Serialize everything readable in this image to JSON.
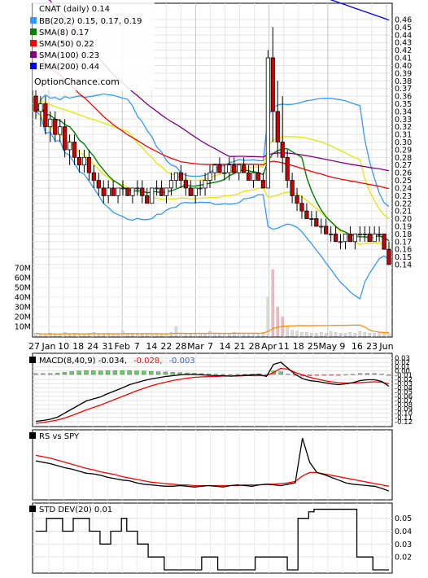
{
  "chart_data": [
    {
      "type": "candlestick",
      "panel": "price",
      "symbol_title": "CNAT (daily) 0.14",
      "legend_position": "top-left",
      "legend": [
        {
          "label": "BB(20,2) 0.15, 0.17, 0.19",
          "color": "#3399ff"
        },
        {
          "label": "SMA(8) 0.17",
          "color": "#008000"
        },
        {
          "label": "SMA(50) 0.22",
          "color": "#ff0000"
        },
        {
          "label": "SMA(100) 0.23",
          "color": "#800080"
        },
        {
          "label": "EMA(200) 0.44",
          "color": "#0000ff"
        }
      ],
      "watermark": "OptionChance.com",
      "y_ticks": [
        "0.46",
        "0.45",
        "0.44",
        "0.43",
        "0.42",
        "0.41",
        "0.40",
        "0.39",
        "0.38",
        "0.37",
        "0.36",
        "0.35",
        "0.34",
        "0.33",
        "0.32",
        "0.31",
        "0.30",
        "0.29",
        "0.28",
        "0.27",
        "0.26",
        "0.25",
        "0.24",
        "0.23",
        "0.22",
        "0.21",
        "0.20",
        "0.19",
        "0.18",
        "0.17",
        "0.16",
        "0.15",
        "0.14"
      ],
      "ylim": [
        0.14,
        0.46
      ],
      "volume_ticks": [
        "70M",
        "60M",
        "50M",
        "40M",
        "30M",
        "20M",
        "10M"
      ],
      "x_ticks": [
        "27",
        "Jan",
        "10",
        "18",
        "24",
        "31",
        "Feb",
        "7",
        "14",
        "22",
        "28",
        "Mar",
        "7",
        "14",
        "21",
        "28",
        "Apr",
        "11",
        "18",
        "25",
        "May",
        "9",
        "16",
        "23",
        "Jun"
      ],
      "ohlc": [
        [
          0.36,
          0.37,
          0.33,
          0.34
        ],
        [
          0.34,
          0.36,
          0.32,
          0.35
        ],
        [
          0.35,
          0.36,
          0.31,
          0.32
        ],
        [
          0.32,
          0.34,
          0.3,
          0.33
        ],
        [
          0.33,
          0.34,
          0.3,
          0.31
        ],
        [
          0.31,
          0.33,
          0.3,
          0.32
        ],
        [
          0.32,
          0.33,
          0.28,
          0.29
        ],
        [
          0.29,
          0.31,
          0.27,
          0.3
        ],
        [
          0.3,
          0.31,
          0.27,
          0.28
        ],
        [
          0.28,
          0.29,
          0.26,
          0.27
        ],
        [
          0.27,
          0.29,
          0.26,
          0.28
        ],
        [
          0.28,
          0.29,
          0.25,
          0.26
        ],
        [
          0.26,
          0.27,
          0.24,
          0.25
        ],
        [
          0.25,
          0.26,
          0.23,
          0.24
        ],
        [
          0.24,
          0.25,
          0.22,
          0.23
        ],
        [
          0.23,
          0.25,
          0.22,
          0.24
        ],
        [
          0.24,
          0.25,
          0.23,
          0.23
        ],
        [
          0.23,
          0.24,
          0.22,
          0.24
        ],
        [
          0.24,
          0.25,
          0.23,
          0.24
        ],
        [
          0.24,
          0.24,
          0.23,
          0.23
        ],
        [
          0.23,
          0.24,
          0.22,
          0.24
        ],
        [
          0.24,
          0.25,
          0.23,
          0.24
        ],
        [
          0.24,
          0.25,
          0.22,
          0.23
        ],
        [
          0.23,
          0.24,
          0.22,
          0.22
        ],
        [
          0.22,
          0.24,
          0.22,
          0.24
        ],
        [
          0.24,
          0.25,
          0.23,
          0.24
        ],
        [
          0.24,
          0.25,
          0.23,
          0.23
        ],
        [
          0.23,
          0.24,
          0.22,
          0.24
        ],
        [
          0.24,
          0.26,
          0.23,
          0.25
        ],
        [
          0.25,
          0.26,
          0.24,
          0.26
        ],
        [
          0.26,
          0.27,
          0.24,
          0.25
        ],
        [
          0.25,
          0.26,
          0.23,
          0.24
        ],
        [
          0.24,
          0.25,
          0.23,
          0.23
        ],
        [
          0.23,
          0.24,
          0.22,
          0.24
        ],
        [
          0.24,
          0.25,
          0.23,
          0.24
        ],
        [
          0.24,
          0.26,
          0.23,
          0.25
        ],
        [
          0.25,
          0.27,
          0.24,
          0.26
        ],
        [
          0.26,
          0.27,
          0.25,
          0.27
        ],
        [
          0.27,
          0.28,
          0.26,
          0.26
        ],
        [
          0.26,
          0.27,
          0.25,
          0.26
        ],
        [
          0.26,
          0.28,
          0.25,
          0.27
        ],
        [
          0.27,
          0.28,
          0.26,
          0.26
        ],
        [
          0.26,
          0.27,
          0.25,
          0.27
        ],
        [
          0.27,
          0.28,
          0.26,
          0.26
        ],
        [
          0.26,
          0.27,
          0.25,
          0.25
        ],
        [
          0.25,
          0.27,
          0.24,
          0.26
        ],
        [
          0.26,
          0.27,
          0.25,
          0.25
        ],
        [
          0.25,
          0.26,
          0.24,
          0.24
        ],
        [
          0.24,
          0.42,
          0.24,
          0.41
        ],
        [
          0.41,
          0.45,
          0.3,
          0.34
        ],
        [
          0.34,
          0.38,
          0.28,
          0.3
        ],
        [
          0.3,
          0.36,
          0.26,
          0.28
        ],
        [
          0.28,
          0.29,
          0.24,
          0.25
        ],
        [
          0.25,
          0.26,
          0.22,
          0.23
        ],
        [
          0.23,
          0.24,
          0.21,
          0.22
        ],
        [
          0.22,
          0.23,
          0.2,
          0.21
        ],
        [
          0.21,
          0.22,
          0.2,
          0.2
        ],
        [
          0.2,
          0.21,
          0.19,
          0.2
        ],
        [
          0.2,
          0.21,
          0.19,
          0.19
        ],
        [
          0.19,
          0.2,
          0.18,
          0.19
        ],
        [
          0.19,
          0.2,
          0.18,
          0.18
        ],
        [
          0.18,
          0.19,
          0.17,
          0.18
        ],
        [
          0.18,
          0.19,
          0.17,
          0.17
        ],
        [
          0.17,
          0.18,
          0.16,
          0.17
        ],
        [
          0.17,
          0.18,
          0.16,
          0.18
        ],
        [
          0.18,
          0.19,
          0.17,
          0.17
        ],
        [
          0.17,
          0.18,
          0.16,
          0.18
        ],
        [
          0.18,
          0.19,
          0.17,
          0.18
        ],
        [
          0.18,
          0.19,
          0.17,
          0.18
        ],
        [
          0.18,
          0.19,
          0.17,
          0.17
        ],
        [
          0.17,
          0.19,
          0.17,
          0.18
        ],
        [
          0.18,
          0.19,
          0.17,
          0.18
        ],
        [
          0.18,
          0.18,
          0.16,
          0.16
        ],
        [
          0.16,
          0.17,
          0.14,
          0.14
        ]
      ],
      "volume_millions": [
        3,
        2,
        2,
        3,
        2,
        2,
        4,
        2,
        3,
        2,
        2,
        3,
        4,
        2,
        2,
        3,
        2,
        2,
        5,
        2,
        2,
        3,
        2,
        2,
        2,
        3,
        2,
        2,
        4,
        10,
        3,
        2,
        2,
        3,
        2,
        2,
        5,
        3,
        2,
        2,
        3,
        4,
        2,
        3,
        2,
        2,
        3,
        4,
        40,
        68,
        30,
        20,
        10,
        6,
        5,
        4,
        4,
        3,
        3,
        4,
        3,
        5,
        4,
        3,
        3,
        4,
        3,
        5,
        4,
        3,
        3,
        4,
        3,
        3
      ]
    },
    {
      "type": "line",
      "panel": "macd",
      "label_prefix": "MACD(8,40,9)",
      "values_text": [
        "-0.034,",
        "-0.028,",
        "-0.003"
      ],
      "value_colors": [
        "#000000",
        "#ff0000",
        "#3366cc"
      ],
      "y_ticks": [
        "0.03",
        "0.02",
        "0.01",
        "0.00",
        "-0.01",
        "-0.02",
        "-0.03",
        "-0.04",
        "-0.05",
        "-0.06",
        "-0.07",
        "-0.08",
        "-0.09",
        "-0.10",
        "-0.11",
        "-0.12"
      ],
      "ylim": [
        -0.125,
        0.035
      ],
      "series": [
        {
          "name": "MACD",
          "color": "#000000",
          "values": [
            -0.12,
            -0.118,
            -0.115,
            -0.11,
            -0.1,
            -0.09,
            -0.08,
            -0.07,
            -0.065,
            -0.06,
            -0.052,
            -0.045,
            -0.038,
            -0.03,
            -0.025,
            -0.02,
            -0.016,
            -0.013,
            -0.01,
            -0.008,
            -0.006,
            -0.005,
            -0.005,
            -0.006,
            -0.007,
            -0.008,
            -0.008,
            -0.009,
            -0.008,
            -0.007,
            -0.006,
            -0.005,
            -0.01,
            0.02,
            0.025,
            0.01,
            -0.005,
            -0.015,
            -0.02,
            -0.022,
            -0.025,
            -0.028,
            -0.03,
            -0.028,
            -0.025,
            -0.02,
            -0.018,
            -0.018,
            -0.022,
            -0.034
          ]
        },
        {
          "name": "Signal",
          "color": "#ff0000",
          "values": [
            -0.125,
            -0.123,
            -0.12,
            -0.117,
            -0.112,
            -0.106,
            -0.099,
            -0.092,
            -0.086,
            -0.08,
            -0.073,
            -0.066,
            -0.059,
            -0.052,
            -0.045,
            -0.039,
            -0.033,
            -0.028,
            -0.024,
            -0.02,
            -0.017,
            -0.014,
            -0.012,
            -0.011,
            -0.01,
            -0.01,
            -0.009,
            -0.009,
            -0.009,
            -0.008,
            -0.008,
            -0.008,
            -0.008,
            0.0,
            0.01,
            0.008,
            0.0,
            -0.006,
            -0.012,
            -0.016,
            -0.02,
            -0.023,
            -0.025,
            -0.026,
            -0.026,
            -0.025,
            -0.024,
            -0.023,
            -0.024,
            -0.028
          ]
        },
        {
          "name": "Histogram",
          "color": "#66cc66",
          "values": [
            0.005,
            0.005,
            0.005,
            0.007,
            0.012,
            0.016,
            0.019,
            0.022,
            0.021,
            0.02,
            0.021,
            0.021,
            0.021,
            0.022,
            0.02,
            0.019,
            0.017,
            0.015,
            0.014,
            0.012,
            0.011,
            0.009,
            0.007,
            0.005,
            0.003,
            0.002,
            0.001,
            0.0,
            0.001,
            0.001,
            0.002,
            0.003,
            -0.002,
            0.02,
            0.015,
            0.002,
            -0.005,
            -0.009,
            -0.008,
            -0.006,
            -0.005,
            -0.005,
            -0.005,
            -0.002,
            0.001,
            0.005,
            0.006,
            0.005,
            0.002,
            -0.006
          ]
        }
      ]
    },
    {
      "type": "line",
      "panel": "rs",
      "label": "RS vs SPY",
      "series": [
        {
          "name": "RS",
          "color": "#000000",
          "values": [
            0.62,
            0.6,
            0.58,
            0.55,
            0.52,
            0.5,
            0.47,
            0.44,
            0.43,
            0.41,
            0.38,
            0.36,
            0.34,
            0.33,
            0.3,
            0.28,
            0.27,
            0.26,
            0.25,
            0.25,
            0.26,
            0.25,
            0.24,
            0.25,
            0.26,
            0.25,
            0.24,
            0.26,
            0.27,
            0.26,
            0.25,
            0.27,
            0.28,
            0.27,
            0.26,
            0.28,
            0.3,
            0.95,
            0.6,
            0.45,
            0.42,
            0.38,
            0.34,
            0.3,
            0.28,
            0.27,
            0.26,
            0.25,
            0.22,
            0.18
          ]
        },
        {
          "name": "RS average",
          "color": "#ff0000",
          "values": [
            0.7,
            0.68,
            0.66,
            0.63,
            0.6,
            0.57,
            0.54,
            0.51,
            0.49,
            0.46,
            0.44,
            0.42,
            0.39,
            0.37,
            0.35,
            0.33,
            0.31,
            0.3,
            0.29,
            0.28,
            0.27,
            0.27,
            0.26,
            0.26,
            0.26,
            0.26,
            0.26,
            0.26,
            0.26,
            0.27,
            0.27,
            0.27,
            0.28,
            0.28,
            0.29,
            0.3,
            0.32,
            0.4,
            0.45,
            0.45,
            0.43,
            0.41,
            0.39,
            0.37,
            0.35,
            0.33,
            0.31,
            0.29,
            0.27,
            0.25
          ]
        }
      ]
    },
    {
      "type": "line",
      "panel": "std",
      "label": "STD DEV(20) 0.01",
      "y_ticks": [
        "0.05",
        "0.04",
        "0.03",
        "0.02"
      ],
      "ylim": [
        0.01,
        0.058
      ],
      "series": [
        {
          "name": "STD DEV(20)",
          "color": "#000000",
          "values": [
            0.04,
            0.04,
            0.05,
            0.05,
            0.05,
            0.04,
            0.04,
            0.05,
            0.05,
            0.05,
            0.04,
            0.04,
            0.03,
            0.03,
            0.04,
            0.04,
            0.05,
            0.04,
            0.04,
            0.03,
            0.03,
            0.02,
            0.02,
            0.02,
            0.01,
            0.01,
            0.01,
            0.01,
            0.01,
            0.01,
            0.01,
            0.02,
            0.02,
            0.02,
            0.01,
            0.01,
            0.01,
            0.01,
            0.01,
            0.01,
            0.01,
            0.02,
            0.02,
            0.02,
            0.02,
            0.02,
            0.02,
            0.01,
            0.01,
            0.05,
            0.05,
            0.055,
            0.057,
            0.057,
            0.057,
            0.057,
            0.057,
            0.057,
            0.057,
            0.057,
            0.02,
            0.02,
            0.02,
            0.01,
            0.01,
            0.01,
            0.01
          ]
        }
      ]
    }
  ]
}
